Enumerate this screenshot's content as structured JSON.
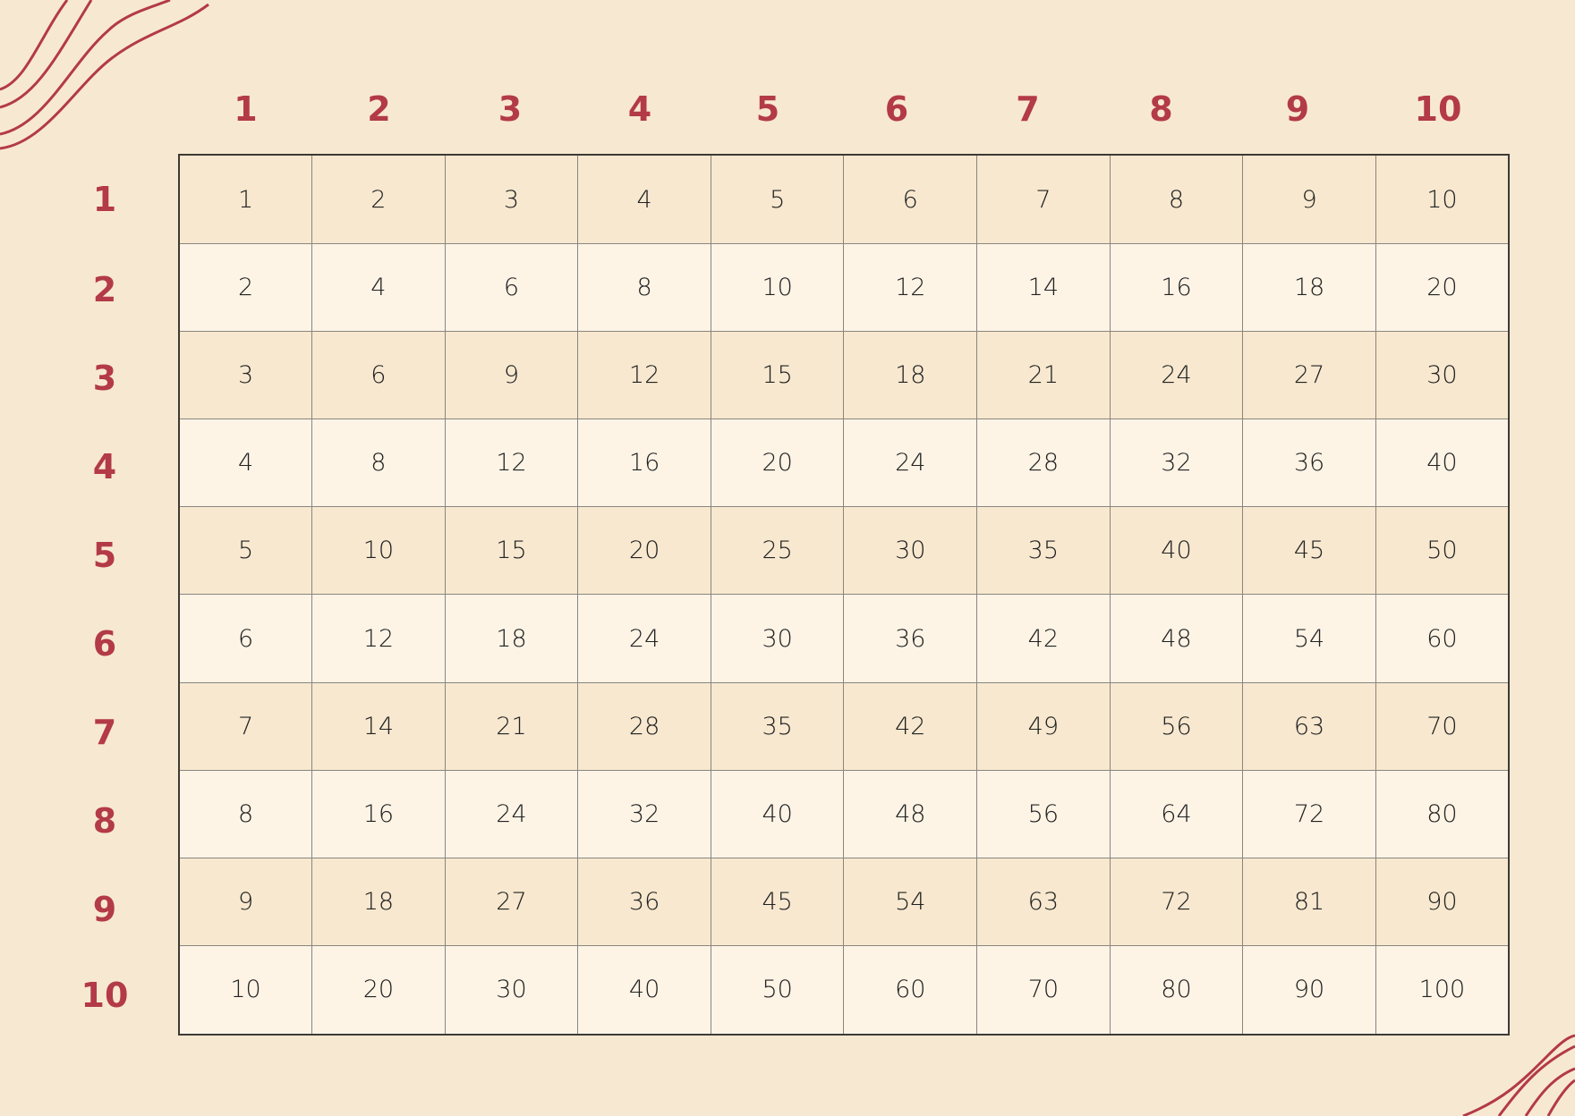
{
  "colors": {
    "background": "#f7e9d1",
    "accent": "#b33a48",
    "row_odd": "#f7e8cf",
    "row_even": "#fdf4e6"
  },
  "column_headers": [
    "1",
    "2",
    "3",
    "4",
    "5",
    "6",
    "7",
    "8",
    "9",
    "10"
  ],
  "row_headers": [
    "1",
    "2",
    "3",
    "4",
    "5",
    "6",
    "7",
    "8",
    "9",
    "10"
  ],
  "rows": [
    [
      "1",
      "2",
      "3",
      "4",
      "5",
      "6",
      "7",
      "8",
      "9",
      "10"
    ],
    [
      "2",
      "4",
      "6",
      "8",
      "10",
      "12",
      "14",
      "16",
      "18",
      "20"
    ],
    [
      "3",
      "6",
      "9",
      "12",
      "15",
      "18",
      "21",
      "24",
      "27",
      "30"
    ],
    [
      "4",
      "8",
      "12",
      "16",
      "20",
      "24",
      "28",
      "32",
      "36",
      "40"
    ],
    [
      "5",
      "10",
      "15",
      "20",
      "25",
      "30",
      "35",
      "40",
      "45",
      "50"
    ],
    [
      "6",
      "12",
      "18",
      "24",
      "30",
      "36",
      "42",
      "48",
      "54",
      "60"
    ],
    [
      "7",
      "14",
      "21",
      "28",
      "35",
      "42",
      "49",
      "56",
      "63",
      "70"
    ],
    [
      "8",
      "16",
      "24",
      "32",
      "40",
      "48",
      "56",
      "64",
      "72",
      "80"
    ],
    [
      "9",
      "18",
      "27",
      "36",
      "45",
      "54",
      "63",
      "72",
      "81",
      "90"
    ],
    [
      "10",
      "20",
      "30",
      "40",
      "50",
      "60",
      "70",
      "80",
      "90",
      "100"
    ]
  ]
}
